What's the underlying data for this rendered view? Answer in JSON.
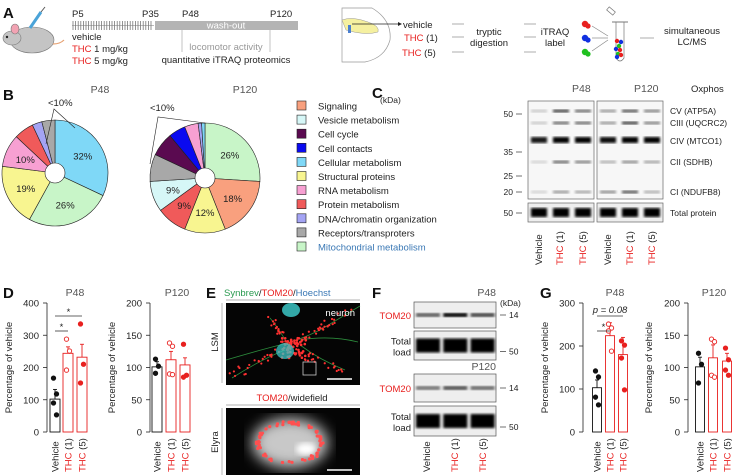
{
  "panel_labels": {
    "a": "A",
    "b": "B",
    "c": "C",
    "d": "D",
    "e": "E",
    "f": "F",
    "g": "G"
  },
  "panel_a": {
    "timeline": {
      "p5": "P5",
      "p35": "P35",
      "p48": "P48",
      "p120": "P120",
      "washout": "wash-out",
      "locomotor": "locomotor activity",
      "proteomics": "quantitative iTRAQ proteomics"
    },
    "groups": [
      {
        "drug": "",
        "rest": "vehicle"
      },
      {
        "drug": "THC",
        "rest": " 1 mg/kg"
      },
      {
        "drug": "THC",
        "rest": " 5 mg/kg"
      }
    ],
    "workflow": {
      "samples": [
        {
          "drug": "",
          "rest": "vehicle"
        },
        {
          "drug": "THC",
          "rest": " (1)"
        },
        {
          "drug": "THC",
          "rest": " (5)"
        }
      ],
      "digestion_line1": "tryptic",
      "digestion_line2": "digestion",
      "label_line1": "iTRAQ",
      "label_line2": "label",
      "ms_line1": "simultaneous",
      "ms_line2": "LC/MS",
      "tag_colors": [
        "#e8201f",
        "#1030e0",
        "#20c020"
      ]
    }
  },
  "panel_b": {
    "small_label": "<10%",
    "legend": [
      {
        "label": "Signaling",
        "color": "#f9a07e"
      },
      {
        "label": "Vesicle metabolism",
        "color": "#d6f7f7"
      },
      {
        "label": "Cell cycle",
        "color": "#5a0a50"
      },
      {
        "label": "Cell contacts",
        "color": "#0a0af0"
      },
      {
        "label": "Cellular metabolism",
        "color": "#7fd8f7"
      },
      {
        "label": "Structural proteins",
        "color": "#f8f590"
      },
      {
        "label": "RNA metabolism",
        "color": "#f7a0d2"
      },
      {
        "label": "Protein metabolism",
        "color": "#f05a5a"
      },
      {
        "label": "DNA/chromatin organization",
        "color": "#a4a4f4"
      },
      {
        "label": "Receptors/transproters",
        "color": "#a8a8a8"
      },
      {
        "label": "Mitochondrial metabolism",
        "color": "#c8f5c8",
        "text_color": "#3a78b5"
      }
    ]
  },
  "panel_c": {
    "kda": "(kDa)",
    "titles": [
      "P48",
      "P120"
    ],
    "oxphos": "Oxphos",
    "markers": [
      "50",
      "35",
      "25",
      "20",
      "50"
    ],
    "bands": [
      "CV (ATP5A)",
      "CIII (UQCRC2)",
      "CIV (MTCO1)",
      "CII (SDHB)",
      "CI (NDUFB8)",
      "Total protein"
    ],
    "lanes": [
      {
        "drug": "",
        "rest": "Vehicle"
      },
      {
        "drug": "THC",
        "rest": " (1)"
      },
      {
        "drug": "THC",
        "rest": " (5)"
      },
      {
        "drug": "",
        "rest": "Vehicle"
      },
      {
        "drug": "THC",
        "rest": " (1)"
      },
      {
        "drug": "THC",
        "rest": " (5)"
      }
    ]
  },
  "panel_e": {
    "title_parts": [
      {
        "text": "Synbrev",
        "color": "#2a9a50"
      },
      {
        "text": "/",
        "color": "#222"
      },
      {
        "text": "TOM20",
        "color": "#e8201f"
      },
      {
        "text": "/",
        "color": "#222"
      },
      {
        "text": "Hoechst",
        "color": "#3a78b5"
      }
    ],
    "lsm": "LSM",
    "neuron": "neuron",
    "widefield_parts": [
      {
        "text": "TOM20",
        "color": "#e8201f"
      },
      {
        "text": "/widefield",
        "color": "#222"
      }
    ],
    "elyra": "Elyra"
  },
  "panel_f": {
    "p48": "P48",
    "p120": "P120",
    "kda": "(kDa)",
    "protein": "TOM20",
    "total_line1": "Total",
    "total_line2": "load",
    "markers": [
      "14",
      "50",
      "14",
      "50"
    ],
    "lanes": [
      {
        "drug": "",
        "rest": "Vehicle"
      },
      {
        "drug": "THC",
        "rest": " (1)"
      },
      {
        "drug": "THC",
        "rest": " (5)"
      }
    ]
  },
  "chart_data": [
    {
      "id": "b-p48",
      "type": "pie",
      "title": "P48",
      "small_label": "<10%",
      "slices": [
        {
          "category": "Cellular metabolism",
          "value": 32,
          "label": "32%"
        },
        {
          "category": "Mitochondrial metabolism",
          "value": 26,
          "label": "26%"
        },
        {
          "category": "Structural proteins",
          "value": 19,
          "label": "19%"
        },
        {
          "category": "RNA metabolism",
          "value": 10,
          "label": "10%"
        },
        {
          "category": "Protein metabolism",
          "value": 6,
          "label": ""
        },
        {
          "category": "DNA/chromatin organization",
          "value": 3,
          "label": ""
        },
        {
          "category": "Receptors/transproters",
          "value": 4,
          "label": ""
        }
      ]
    },
    {
      "id": "b-p120",
      "type": "pie",
      "title": "P120",
      "small_label": "<10%",
      "slices": [
        {
          "category": "Mitochondrial metabolism",
          "value": 26,
          "label": "26%"
        },
        {
          "category": "Signaling",
          "value": 18,
          "label": "18%"
        },
        {
          "category": "Structural proteins",
          "value": 12,
          "label": "12%"
        },
        {
          "category": "Protein metabolism",
          "value": 9,
          "label": "9%"
        },
        {
          "category": "Vesicle metabolism",
          "value": 9,
          "label": "9%"
        },
        {
          "category": "Receptors/transproters",
          "value": 8,
          "label": ""
        },
        {
          "category": "Cell cycle",
          "value": 7,
          "label": ""
        },
        {
          "category": "Cell contacts",
          "value": 5,
          "label": ""
        },
        {
          "category": "RNA metabolism",
          "value": 4,
          "label": ""
        },
        {
          "category": "DNA/chromatin organization",
          "value": 1,
          "label": ""
        },
        {
          "category": "Cellular metabolism",
          "value": 1,
          "label": ""
        }
      ]
    },
    {
      "id": "d-p48",
      "type": "bar",
      "title": "P48",
      "ylabel": "Percentage of vehicle",
      "ylim": [
        0,
        400
      ],
      "yticks": [
        0,
        100,
        200,
        300,
        400
      ],
      "categories": [
        {
          "drug": "",
          "rest": "Vehicle"
        },
        {
          "drug": "THC",
          "rest": " (1)"
        },
        {
          "drug": "THC",
          "rest": " (5)"
        }
      ],
      "bars": [
        {
          "value": 102,
          "sem": 30,
          "points": [
            167,
            118,
            90,
            53
          ]
        },
        {
          "value": 244,
          "sem": 20,
          "points": [
            288,
            251,
            192
          ]
        },
        {
          "value": 232,
          "sem": 40,
          "points": [
            335,
            210,
            152
          ]
        }
      ],
      "significance": [
        {
          "from": 0,
          "to": 1,
          "label": "*"
        },
        {
          "from": 0,
          "to": 2,
          "label": "*"
        }
      ]
    },
    {
      "id": "d-p120",
      "type": "bar",
      "title": "P120",
      "ylabel": "Percentage of vehicle",
      "ylim": [
        0,
        200
      ],
      "yticks": [
        0,
        50,
        100,
        150,
        200
      ],
      "categories": [
        {
          "drug": "",
          "rest": "Vehicle"
        },
        {
          "drug": "THC",
          "rest": " (1)"
        },
        {
          "drug": "THC",
          "rest": " (5)"
        }
      ],
      "bars": [
        {
          "value": 101,
          "sem": 8,
          "points": [
            113,
            102,
            91
          ]
        },
        {
          "value": 112,
          "sem": 13,
          "points": [
            138,
            133,
            90,
            89
          ]
        },
        {
          "value": 104,
          "sem": 11,
          "points": [
            136,
            88,
            85
          ]
        }
      ],
      "significance": []
    },
    {
      "id": "g-p48",
      "type": "bar",
      "title": "P48",
      "ylabel": "Percentage of vehicle",
      "ylim": [
        0,
        300
      ],
      "yticks": [
        0,
        100,
        200,
        300
      ],
      "categories": [
        {
          "drug": "",
          "rest": "Vehicle"
        },
        {
          "drug": "THC",
          "rest": " (1)"
        },
        {
          "drug": "THC",
          "rest": " (5)"
        }
      ],
      "bars": [
        {
          "value": 103,
          "sem": 18,
          "points": [
            142,
            128,
            81,
            63
          ]
        },
        {
          "value": 224,
          "sem": 30,
          "points": [
            251,
            242,
            235,
            188
          ]
        },
        {
          "value": 180,
          "sem": 40,
          "points": [
            212,
            202,
            172,
            98
          ]
        }
      ],
      "significance": [
        {
          "from": 0,
          "to": 1,
          "label": "*"
        },
        {
          "from": 0,
          "to": 2,
          "label": "p = 0.08"
        }
      ]
    },
    {
      "id": "g-p120",
      "type": "bar",
      "title": "P120",
      "ylabel": "Percentage of vehicle",
      "ylim": [
        0,
        200
      ],
      "yticks": [
        0,
        50,
        100,
        150,
        200
      ],
      "categories": [
        {
          "drug": "",
          "rest": "Vehicle"
        },
        {
          "drug": "THC",
          "rest": " (1)"
        },
        {
          "drug": "THC",
          "rest": " (5)"
        }
      ],
      "bars": [
        {
          "value": 101,
          "sem": 15,
          "points": [
            122,
            105,
            76
          ]
        },
        {
          "value": 115,
          "sem": 20,
          "points": [
            144,
            140,
            88,
            85
          ]
        },
        {
          "value": 110,
          "sem": 12,
          "points": [
            130,
            112,
            96,
            88
          ]
        }
      ],
      "significance": []
    }
  ]
}
